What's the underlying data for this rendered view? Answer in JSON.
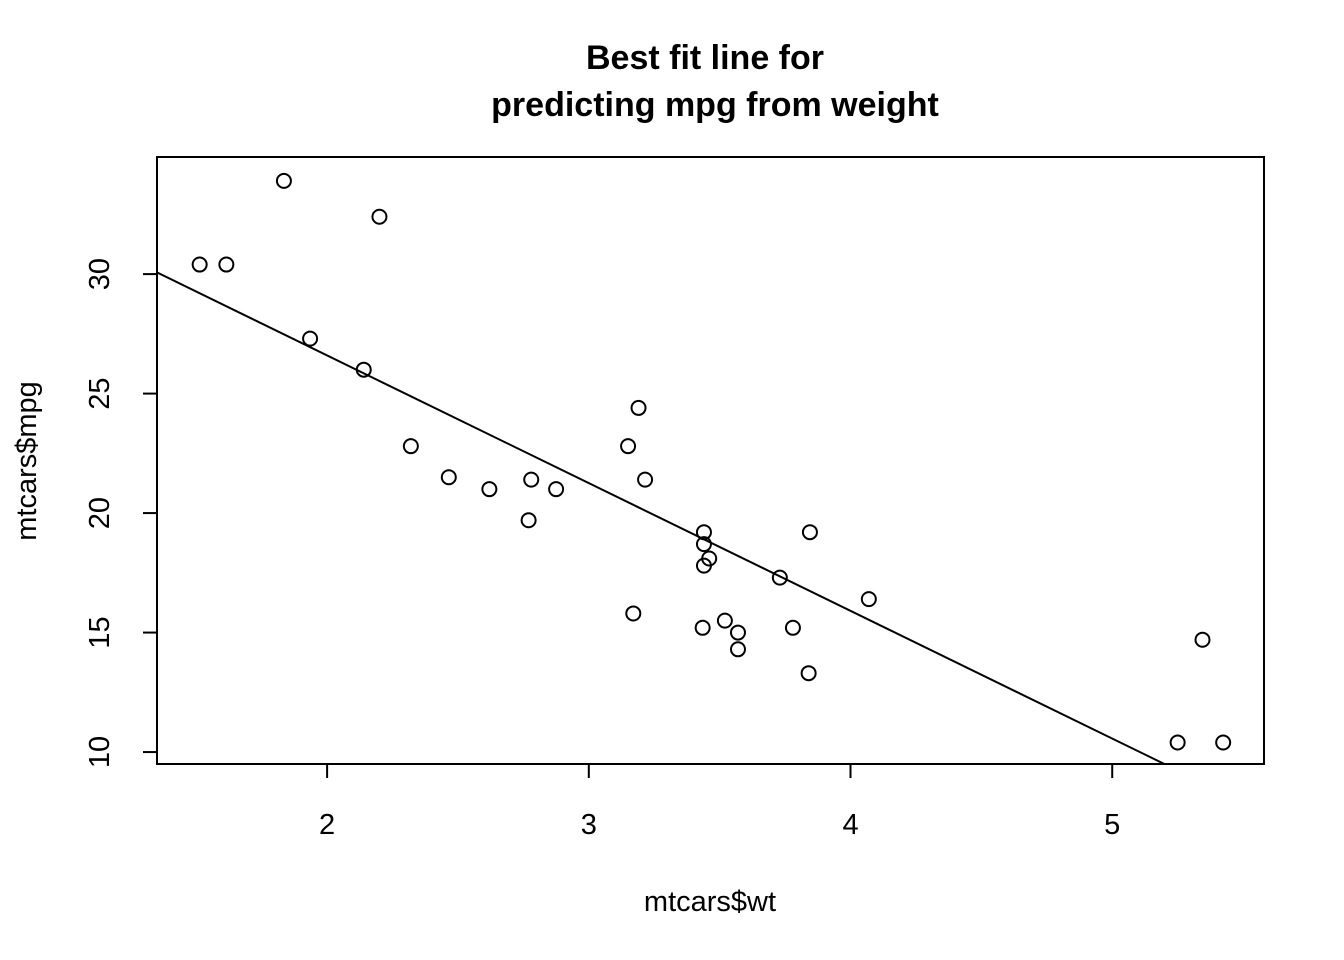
{
  "chart_data": {
    "type": "scatter",
    "title": [
      "Best fit line for",
      "predicting mpg from weight"
    ],
    "xlabel": "mtcars$wt",
    "ylabel": "mtcars$mpg",
    "xlim": [
      1.35,
      5.58
    ],
    "ylim": [
      9.5,
      34.9
    ],
    "x_ticks": [
      2,
      3,
      4,
      5
    ],
    "y_ticks": [
      10,
      15,
      20,
      25,
      30
    ],
    "points": [
      {
        "x": 2.62,
        "y": 21.0
      },
      {
        "x": 2.875,
        "y": 21.0
      },
      {
        "x": 2.32,
        "y": 22.8
      },
      {
        "x": 3.215,
        "y": 21.4
      },
      {
        "x": 3.44,
        "y": 18.7
      },
      {
        "x": 3.46,
        "y": 18.1
      },
      {
        "x": 3.57,
        "y": 14.3
      },
      {
        "x": 3.19,
        "y": 24.4
      },
      {
        "x": 3.15,
        "y": 22.8
      },
      {
        "x": 3.44,
        "y": 19.2
      },
      {
        "x": 3.44,
        "y": 17.8
      },
      {
        "x": 4.07,
        "y": 16.4
      },
      {
        "x": 3.73,
        "y": 17.3
      },
      {
        "x": 3.78,
        "y": 15.2
      },
      {
        "x": 5.25,
        "y": 10.4
      },
      {
        "x": 5.424,
        "y": 10.4
      },
      {
        "x": 5.345,
        "y": 14.7
      },
      {
        "x": 2.2,
        "y": 32.4
      },
      {
        "x": 1.615,
        "y": 30.4
      },
      {
        "x": 1.835,
        "y": 33.9
      },
      {
        "x": 2.465,
        "y": 21.5
      },
      {
        "x": 3.52,
        "y": 15.5
      },
      {
        "x": 3.435,
        "y": 15.2
      },
      {
        "x": 3.84,
        "y": 13.3
      },
      {
        "x": 3.845,
        "y": 19.2
      },
      {
        "x": 1.935,
        "y": 27.3
      },
      {
        "x": 2.14,
        "y": 26.0
      },
      {
        "x": 1.513,
        "y": 30.4
      },
      {
        "x": 3.17,
        "y": 15.8
      },
      {
        "x": 2.77,
        "y": 19.7
      },
      {
        "x": 3.57,
        "y": 15.0
      },
      {
        "x": 2.78,
        "y": 21.4
      }
    ],
    "fit_line": {
      "intercept": 37.285,
      "slope": -5.344
    },
    "grid": false,
    "legend": "none"
  }
}
